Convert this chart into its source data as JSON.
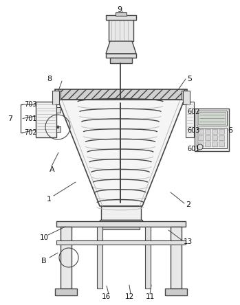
{
  "bg_color": "#ffffff",
  "line_color": "#444444",
  "dark_color": "#333333",
  "gray_color": "#888888",
  "light_gray": "#bbbbbb",
  "fill_light": "#f0f0f0",
  "fill_mid": "#e0e0e0",
  "fill_dark": "#cccccc",
  "fill_hatch": "#d8d8d8",
  "figsize": [
    3.49,
    4.44
  ],
  "dpi": 100
}
